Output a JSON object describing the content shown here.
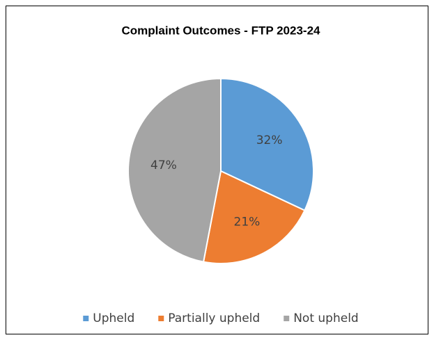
{
  "chart_data": {
    "type": "pie",
    "title": "Complaint Outcomes - FTP 2023-24",
    "categories": [
      "Upheld",
      "Partially upheld",
      "Not upheld"
    ],
    "values": [
      32,
      21,
      47
    ],
    "value_labels": [
      "32%",
      "21%",
      "47%"
    ],
    "colors": [
      "#5b9bd5",
      "#ed7d31",
      "#a5a5a5"
    ],
    "legend": "bottom"
  }
}
